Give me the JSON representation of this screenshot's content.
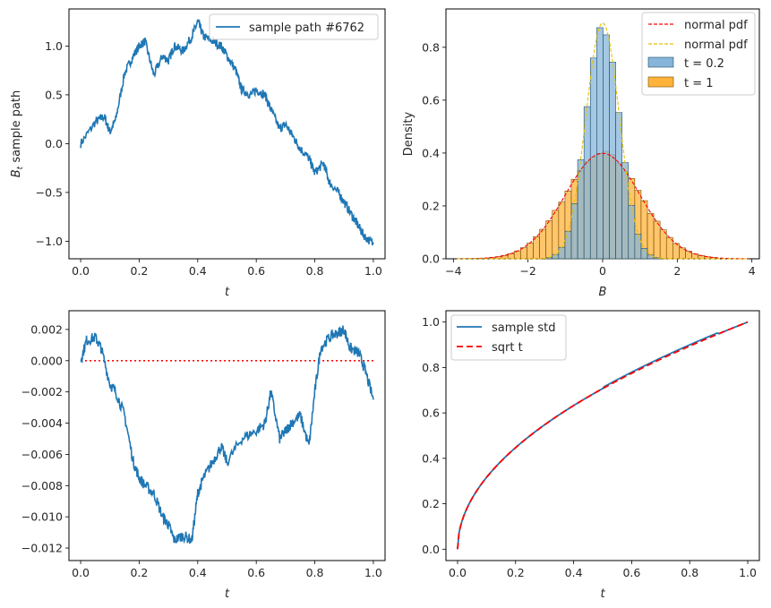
{
  "chart_data": [
    {
      "id": "path",
      "type": "line",
      "xlabel": "t",
      "ylabel_main": "B",
      "ylabel_sub": "t",
      "ylabel_rest": " sample path",
      "xlim": [
        -0.04,
        1.04
      ],
      "ylim": [
        -1.18,
        1.38
      ],
      "xticks": [
        0.0,
        0.2,
        0.4,
        0.6,
        0.8,
        1.0
      ],
      "xtick_labels": [
        "0.0",
        "0.2",
        "0.4",
        "0.6",
        "0.8",
        "1.0"
      ],
      "yticks": [
        -1.0,
        -0.5,
        0.0,
        0.5,
        1.0
      ],
      "ytick_labels": [
        "−1.0",
        "−0.5",
        "0.0",
        "0.5",
        "1.0"
      ],
      "legend": [
        "sample path #6762"
      ],
      "color": "#1f77b4",
      "x": [
        0.0,
        0.05,
        0.08,
        0.1,
        0.12,
        0.15,
        0.18,
        0.2,
        0.22,
        0.25,
        0.28,
        0.3,
        0.32,
        0.35,
        0.38,
        0.4,
        0.42,
        0.45,
        0.48,
        0.5,
        0.53,
        0.55,
        0.58,
        0.6,
        0.63,
        0.65,
        0.68,
        0.7,
        0.73,
        0.75,
        0.78,
        0.8,
        0.83,
        0.85,
        0.88,
        0.9,
        0.93,
        0.95,
        0.97,
        1.0
      ],
      "values": [
        0.0,
        0.22,
        0.28,
        0.12,
        0.25,
        0.72,
        0.9,
        1.0,
        1.05,
        0.7,
        0.9,
        0.85,
        1.0,
        0.95,
        1.1,
        1.25,
        1.1,
        1.05,
        1.0,
        0.9,
        0.75,
        0.55,
        0.5,
        0.55,
        0.5,
        0.35,
        0.15,
        0.2,
        0.05,
        -0.05,
        -0.15,
        -0.3,
        -0.2,
        -0.4,
        -0.5,
        -0.6,
        -0.75,
        -0.85,
        -0.95,
        -1.03
      ]
    },
    {
      "id": "hist",
      "type": "histogram",
      "xlabel": "B",
      "ylabel": "Density",
      "xlim": [
        -4.2,
        4.2
      ],
      "ylim": [
        0,
        0.945
      ],
      "xticks": [
        -4,
        -2,
        0,
        2,
        4
      ],
      "xtick_labels": [
        "−4",
        "−2",
        "0",
        "2",
        "4"
      ],
      "yticks": [
        0.0,
        0.2,
        0.4,
        0.6,
        0.8
      ],
      "ytick_labels": [
        "0.0",
        "0.2",
        "0.4",
        "0.6",
        "0.8"
      ],
      "legend": [
        "normal pdf",
        "normal pdf",
        "t = 0.2",
        "t = 1"
      ],
      "series": [
        {
          "name": "t = 0.2",
          "std": 0.447,
          "color": "#86b5d9",
          "edge": "#1f4e6e"
        },
        {
          "name": "t = 1",
          "std": 1.0,
          "color": "#ffb33a",
          "edge": "#7a4a00"
        }
      ],
      "pdf_colors": [
        "#ff0000",
        "#e5c100"
      ],
      "bin_start": -3.9,
      "bin_width": 0.17,
      "bin_count": 46
    },
    {
      "id": "diff",
      "type": "line",
      "xlabel": "t",
      "xlim": [
        -0.04,
        1.04
      ],
      "ylim": [
        -0.0128,
        0.0032
      ],
      "xticks": [
        0.0,
        0.2,
        0.4,
        0.6,
        0.8,
        1.0
      ],
      "xtick_labels": [
        "0.0",
        "0.2",
        "0.4",
        "0.6",
        "0.8",
        "1.0"
      ],
      "yticks": [
        -0.012,
        -0.01,
        -0.008,
        -0.006,
        -0.004,
        -0.002,
        0.0,
        0.002
      ],
      "ytick_labels": [
        "−0.012",
        "−0.010",
        "−0.008",
        "−0.006",
        "−0.004",
        "−0.002",
        "0.000",
        "0.002"
      ],
      "zero_line": 0.0,
      "zero_color": "#ff0000",
      "color": "#1f77b4",
      "x": [
        0.0,
        0.02,
        0.05,
        0.07,
        0.1,
        0.12,
        0.15,
        0.18,
        0.2,
        0.22,
        0.25,
        0.28,
        0.3,
        0.32,
        0.35,
        0.38,
        0.4,
        0.42,
        0.45,
        0.48,
        0.5,
        0.55,
        0.6,
        0.63,
        0.65,
        0.68,
        0.7,
        0.72,
        0.75,
        0.78,
        0.8,
        0.82,
        0.85,
        0.88,
        0.9,
        0.92,
        0.95,
        0.97,
        1.0
      ],
      "values": [
        0.0,
        0.0013,
        0.0015,
        0.0008,
        -0.0015,
        -0.002,
        -0.0035,
        -0.0065,
        -0.0075,
        -0.008,
        -0.0085,
        -0.01,
        -0.0105,
        -0.0115,
        -0.0112,
        -0.0115,
        -0.0085,
        -0.0075,
        -0.0065,
        -0.0055,
        -0.0065,
        -0.005,
        -0.0045,
        -0.004,
        -0.002,
        -0.005,
        -0.0045,
        -0.004,
        -0.0035,
        -0.0055,
        -0.002,
        0.0008,
        0.0015,
        0.0018,
        0.002,
        0.0008,
        0.0005,
        -0.0005,
        -0.0025
      ]
    },
    {
      "id": "std",
      "type": "line",
      "xlabel": "t",
      "xlim": [
        -0.04,
        1.04
      ],
      "ylim": [
        -0.05,
        1.05
      ],
      "xticks": [
        0.0,
        0.2,
        0.4,
        0.6,
        0.8,
        1.0
      ],
      "xtick_labels": [
        "0.0",
        "0.2",
        "0.4",
        "0.6",
        "0.8",
        "1.0"
      ],
      "yticks": [
        0.0,
        0.2,
        0.4,
        0.6,
        0.8,
        1.0
      ],
      "ytick_labels": [
        "0.0",
        "0.2",
        "0.4",
        "0.6",
        "0.8",
        "1.0"
      ],
      "legend": [
        "sample std",
        "sqrt t"
      ],
      "series": [
        {
          "name": "sample std",
          "color": "#1f77b4",
          "dash": "none"
        },
        {
          "name": "sqrt t",
          "color": "#ff0000",
          "dash": "7,4"
        }
      ]
    }
  ]
}
